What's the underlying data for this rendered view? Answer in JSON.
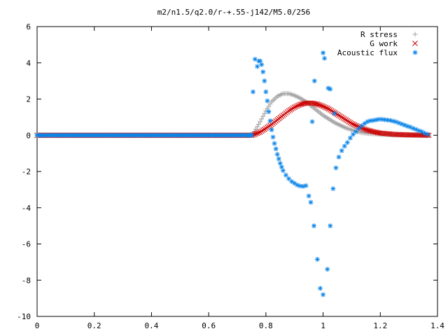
{
  "chart_data": {
    "type": "scatter",
    "title": "m2/n1.5/q2.0/r-+.55-j142/M5.0/256",
    "xlabel": "",
    "ylabel": "",
    "xlim": [
      0,
      1.4
    ],
    "ylim": [
      -10,
      6
    ],
    "xticks": [
      "0",
      "0.2",
      "0.4",
      "0.6",
      "0.8",
      "1",
      "1.2",
      "1.4"
    ],
    "yticks": [
      "6",
      "4",
      "2",
      "0",
      "-2",
      "-4",
      "-6",
      "-8",
      "-10"
    ],
    "grid": false,
    "legend_position": "top-right",
    "series": [
      {
        "name": "R stress",
        "marker": "plus",
        "color": "#a0a0a0",
        "points": [
          [
            0.0,
            0.0
          ],
          [
            0.75,
            0.0
          ],
          [
            0.76,
            0.2
          ],
          [
            0.78,
            0.75
          ],
          [
            0.8,
            1.35
          ],
          [
            0.82,
            1.85
          ],
          [
            0.84,
            2.15
          ],
          [
            0.86,
            2.3
          ],
          [
            0.88,
            2.3
          ],
          [
            0.9,
            2.2
          ],
          [
            0.92,
            2.05
          ],
          [
            0.94,
            1.85
          ],
          [
            0.96,
            1.6
          ],
          [
            0.98,
            1.35
          ],
          [
            1.0,
            1.1
          ],
          [
            1.02,
            0.9
          ],
          [
            1.04,
            0.7
          ],
          [
            1.06,
            0.55
          ],
          [
            1.08,
            0.4
          ],
          [
            1.1,
            0.3
          ],
          [
            1.12,
            0.2
          ],
          [
            1.14,
            0.14
          ],
          [
            1.16,
            0.1
          ],
          [
            1.2,
            0.05
          ],
          [
            1.25,
            0.02
          ],
          [
            1.3,
            0.01
          ],
          [
            1.37,
            0.0
          ]
        ]
      },
      {
        "name": "G work",
        "marker": "cross",
        "color": "#cc0000",
        "points": [
          [
            0.0,
            0.0
          ],
          [
            0.75,
            0.0
          ],
          [
            0.76,
            0.05
          ],
          [
            0.78,
            0.18
          ],
          [
            0.8,
            0.38
          ],
          [
            0.82,
            0.6
          ],
          [
            0.84,
            0.85
          ],
          [
            0.86,
            1.1
          ],
          [
            0.88,
            1.35
          ],
          [
            0.9,
            1.55
          ],
          [
            0.92,
            1.7
          ],
          [
            0.94,
            1.78
          ],
          [
            0.96,
            1.78
          ],
          [
            0.98,
            1.72
          ],
          [
            1.0,
            1.6
          ],
          [
            1.02,
            1.45
          ],
          [
            1.04,
            1.25
          ],
          [
            1.06,
            1.05
          ],
          [
            1.08,
            0.85
          ],
          [
            1.1,
            0.65
          ],
          [
            1.12,
            0.5
          ],
          [
            1.14,
            0.36
          ],
          [
            1.16,
            0.26
          ],
          [
            1.18,
            0.18
          ],
          [
            1.2,
            0.12
          ],
          [
            1.25,
            0.05
          ],
          [
            1.3,
            0.02
          ],
          [
            1.37,
            0.0
          ]
        ]
      },
      {
        "name": "Acoustic flux",
        "marker": "star",
        "color": "#0a84e8",
        "points": [
          [
            0.0,
            0.0
          ],
          [
            0.75,
            0.0
          ],
          [
            0.755,
            2.4
          ],
          [
            0.762,
            4.2
          ],
          [
            0.77,
            3.8
          ],
          [
            0.775,
            4.1
          ],
          [
            0.78,
            4.1
          ],
          [
            0.785,
            3.9
          ],
          [
            0.79,
            3.5
          ],
          [
            0.795,
            3.0
          ],
          [
            0.8,
            2.4
          ],
          [
            0.805,
            1.9
          ],
          [
            0.81,
            1.3
          ],
          [
            0.815,
            0.8
          ],
          [
            0.82,
            0.3
          ],
          [
            0.825,
            -0.1
          ],
          [
            0.83,
            -0.45
          ],
          [
            0.835,
            -0.75
          ],
          [
            0.84,
            -1.05
          ],
          [
            0.845,
            -1.3
          ],
          [
            0.85,
            -1.55
          ],
          [
            0.855,
            -1.75
          ],
          [
            0.86,
            -1.95
          ],
          [
            0.87,
            -2.2
          ],
          [
            0.88,
            -2.4
          ],
          [
            0.89,
            -2.55
          ],
          [
            0.9,
            -2.65
          ],
          [
            0.91,
            -2.75
          ],
          [
            0.92,
            -2.8
          ],
          [
            0.93,
            -2.82
          ],
          [
            0.94,
            -2.78
          ],
          [
            0.95,
            -3.35
          ],
          [
            0.957,
            -3.7
          ],
          [
            0.968,
            -5.0
          ],
          [
            0.98,
            -6.85
          ],
          [
            0.99,
            -8.45
          ],
          [
            1.0,
            -8.8
          ],
          [
            1.015,
            -7.4
          ],
          [
            1.025,
            -5.0
          ],
          [
            1.035,
            -2.95
          ],
          [
            1.045,
            -1.8
          ],
          [
            1.055,
            -1.2
          ],
          [
            1.065,
            -0.85
          ],
          [
            1.075,
            -0.6
          ],
          [
            1.085,
            -0.4
          ],
          [
            1.095,
            -0.15
          ],
          [
            1.105,
            0.05
          ],
          [
            1.115,
            0.2
          ],
          [
            1.125,
            0.38
          ],
          [
            1.135,
            0.52
          ],
          [
            1.145,
            0.65
          ],
          [
            1.155,
            0.75
          ],
          [
            1.165,
            0.8
          ],
          [
            1.175,
            0.82
          ],
          [
            1.185,
            0.85
          ],
          [
            1.195,
            0.88
          ],
          [
            1.205,
            0.88
          ],
          [
            1.215,
            0.86
          ],
          [
            1.225,
            0.84
          ],
          [
            1.235,
            0.82
          ],
          [
            1.245,
            0.78
          ],
          [
            1.255,
            0.74
          ],
          [
            1.265,
            0.68
          ],
          [
            1.275,
            0.62
          ],
          [
            1.285,
            0.56
          ],
          [
            1.295,
            0.5
          ],
          [
            1.305,
            0.45
          ],
          [
            1.315,
            0.38
          ],
          [
            1.325,
            0.32
          ],
          [
            1.335,
            0.25
          ],
          [
            1.345,
            0.2
          ],
          [
            1.355,
            0.12
          ],
          [
            1.365,
            0.05
          ],
          [
            0.962,
            0.75
          ],
          [
            0.97,
            3.0
          ],
          [
            1.0,
            4.55
          ],
          [
            1.005,
            4.25
          ],
          [
            1.018,
            2.6
          ],
          [
            1.025,
            2.55
          ],
          [
            1.04,
            1.2
          ]
        ]
      }
    ]
  }
}
